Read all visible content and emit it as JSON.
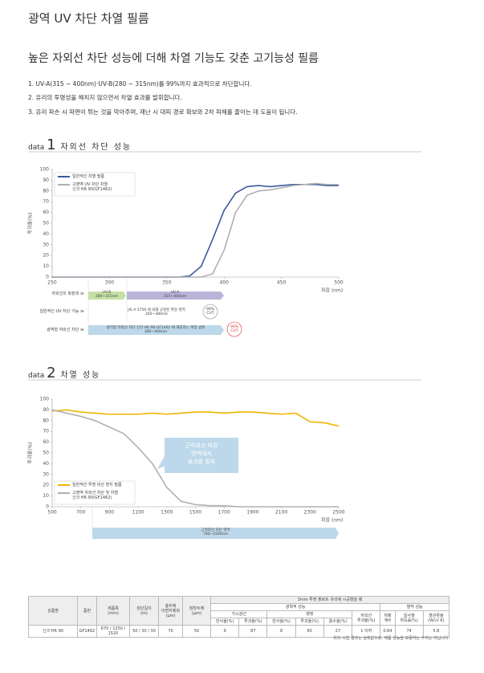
{
  "title": "광역 UV 차단 차열 필름",
  "subtitle": "높은 자외선 차단 성능에 더해 차열 기능도 갖춘 고기능성 필름",
  "points": [
    "1. UV-A(315 ~ 400nm)·UV-B(280 ~ 315nm)를 99%까지 효과적으로 차단합니다.",
    "2. 유리의 투명성을 해치지 않으면서 차열 효과를 발휘합니다.",
    "3. 유리 파손 시 파편이 튀는 것을 막아주며, 재난 시 대피 경로 확보와 2차 피해를 줄이는 데 도움이 됩니다."
  ],
  "sections": [
    {
      "prefix": "data",
      "number": "1"
    },
    {
      "prefix": "data",
      "number": "2"
    }
  ],
  "bands1": {
    "row_labels": [
      "자외선의 파장대 ≫",
      "일반적인 UV 차단 기능 ≫",
      "광역형 자외선 차단 ≫"
    ],
    "uvb": "UV-B\n280~315nm",
    "uva": "UV-A\n315~400nm",
    "jis": "JIS A 5759 에 의해 규정된 파장 영역\n300~380nm",
    "wide": "광역형 자외선 차단 신크 HR 90 GF1462 에 해당하는 파장 범위\n380~400nm",
    "cut": "99%\nCUT"
  },
  "band2": "근적외선 차단 영역\n780~2500nm",
  "chart_data": [
    {
      "type": "line",
      "title": "자외선 차단 성능",
      "xlabel": "파장 (nm)",
      "ylabel": "투과율(%)",
      "legend": "upper left",
      "x": [
        250,
        260,
        270,
        280,
        290,
        300,
        310,
        320,
        330,
        340,
        350,
        360,
        370,
        380,
        390,
        400,
        410,
        420,
        430,
        440,
        450,
        460,
        470,
        480,
        490,
        500
      ],
      "xlim": [
        250,
        500
      ],
      "xticks": [
        250,
        300,
        350,
        400,
        450,
        500
      ],
      "ylim": [
        0,
        100
      ],
      "yticks": [
        0,
        10,
        20,
        30,
        40,
        50,
        60,
        70,
        80,
        90,
        100
      ],
      "series": [
        {
          "name": "일반적인 차열 필름",
          "color": "#3b5b9b",
          "values": [
            0,
            0,
            0,
            0,
            0,
            0,
            0,
            0,
            0,
            0,
            0,
            0,
            1,
            10,
            35,
            62,
            78,
            84,
            85,
            84,
            85,
            86,
            86,
            86,
            85,
            85
          ]
        },
        {
          "name": "고영역 UV 차단 차열\n신크 HR 90(GF1462)",
          "color": "#b0b0b0",
          "values": [
            0,
            0,
            0,
            0,
            0,
            0,
            0,
            0,
            0,
            0,
            0,
            0,
            0,
            0,
            3,
            25,
            60,
            76,
            80,
            81,
            83,
            85,
            86,
            87,
            86,
            86
          ]
        }
      ]
    },
    {
      "type": "line",
      "title": "차열 성능",
      "xlabel": "파장 (nm)",
      "ylabel": "투과율(%)",
      "legend": "lower left",
      "annotation": "근적외선 파장\n영역에서\n효과를 발휘",
      "x": [
        500,
        600,
        700,
        800,
        900,
        1000,
        1100,
        1200,
        1300,
        1400,
        1500,
        1600,
        1700,
        1800,
        1900,
        2000,
        2100,
        2200,
        2300,
        2400,
        2500
      ],
      "xlim": [
        500,
        2500
      ],
      "xticks": [
        500,
        700,
        900,
        1100,
        1300,
        1500,
        1700,
        1900,
        2100,
        2300,
        2500
      ],
      "ylim": [
        0,
        100
      ],
      "yticks": [
        0,
        10,
        20,
        30,
        40,
        50,
        60,
        70,
        80,
        90,
        100
      ],
      "series": [
        {
          "name": "일반적인 투명 비산 방지 필름",
          "color": "#f0b400",
          "values": [
            89,
            90,
            88,
            87,
            86,
            86,
            86,
            87,
            86,
            87,
            88,
            88,
            87,
            88,
            88,
            87,
            86,
            87,
            79,
            78,
            75
          ]
        },
        {
          "name": "고영역 자외선 차단 및 차열\n신크 HR 90(GF1462)",
          "color": "#b0b0b0",
          "values": [
            90,
            87,
            84,
            80,
            74,
            68,
            55,
            40,
            18,
            5,
            2,
            1,
            1,
            0,
            0,
            0,
            0,
            0,
            0,
            0,
            0
          ]
        }
      ]
    }
  ],
  "table": {
    "columns": [
      "상품명",
      "품번",
      "제품폭\n(mm)",
      "원단길이\n(m)",
      "총두께\n이면지제외\n(μm)",
      "점착두께\n(μm)"
    ],
    "group": "3mm 투명 플로트 유리에 시공했을 때",
    "optical": "광학적 성능",
    "thermal": "열적 성능",
    "visible": "가시광선",
    "solar": "햇빛",
    "uv": "자외선\n투과율(%)",
    "sub": [
      "반사율(%)",
      "투과율(%)",
      "반사율(%)",
      "투과율(%)",
      "흡수율(%)"
    ],
    "thermal_cols": [
      "차폐\n계수",
      "일사열\n취득률(%)",
      "열관류율\n(W/㎡ K)"
    ],
    "row": [
      "신크 HR 90",
      "GF1462",
      "670 / 1250 / 1520",
      "50 / 30 / 30",
      "70",
      "50",
      "9",
      "87",
      "8",
      "65",
      "27",
      "1 이하",
      "0.64",
      "74",
      "5.8"
    ],
    "note": "위의 시험 결과는 실측값으로, 제품 성능을 보증하는 수치는 아닙니다."
  }
}
